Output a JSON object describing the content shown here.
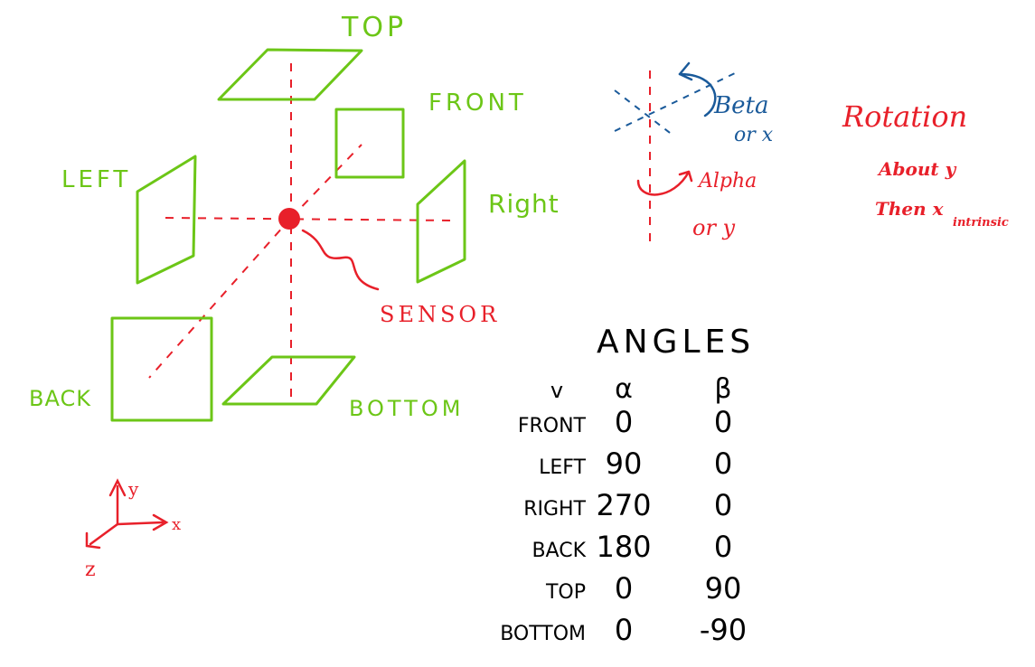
{
  "faces": {
    "top": "TOP",
    "front": "FRONT",
    "left": "LEFT",
    "right": "Right",
    "back": "BACK",
    "bottom": "BOTTOM"
  },
  "sensor_label": "SENSOR",
  "rotation_diagram": {
    "beta_label": "Beta",
    "beta_axis": "or x",
    "alpha_label": "Alpha",
    "alpha_axis": "or y"
  },
  "rotation_note": {
    "title": "Rotation",
    "line1": "About y",
    "line2_main": "Then x",
    "line2_sub": "intrinsic"
  },
  "axes": {
    "x": "x",
    "y": "y",
    "z": "z"
  },
  "angles_table": {
    "title": "ANGLES",
    "headers": [
      "v",
      "α",
      "β"
    ],
    "rows": [
      [
        "FRONT",
        "0",
        "0"
      ],
      [
        "LEFT",
        "90",
        "0"
      ],
      [
        "RIGHT",
        "270",
        "0"
      ],
      [
        "BACK",
        "180",
        "0"
      ],
      [
        "TOP",
        "0",
        "90"
      ],
      [
        "BOTTOM",
        "0",
        "-90"
      ]
    ]
  },
  "colors": {
    "faces": "#6cc617",
    "sensor": "#e8202a",
    "rotation": "#1a5a9a",
    "table": "#000000"
  }
}
